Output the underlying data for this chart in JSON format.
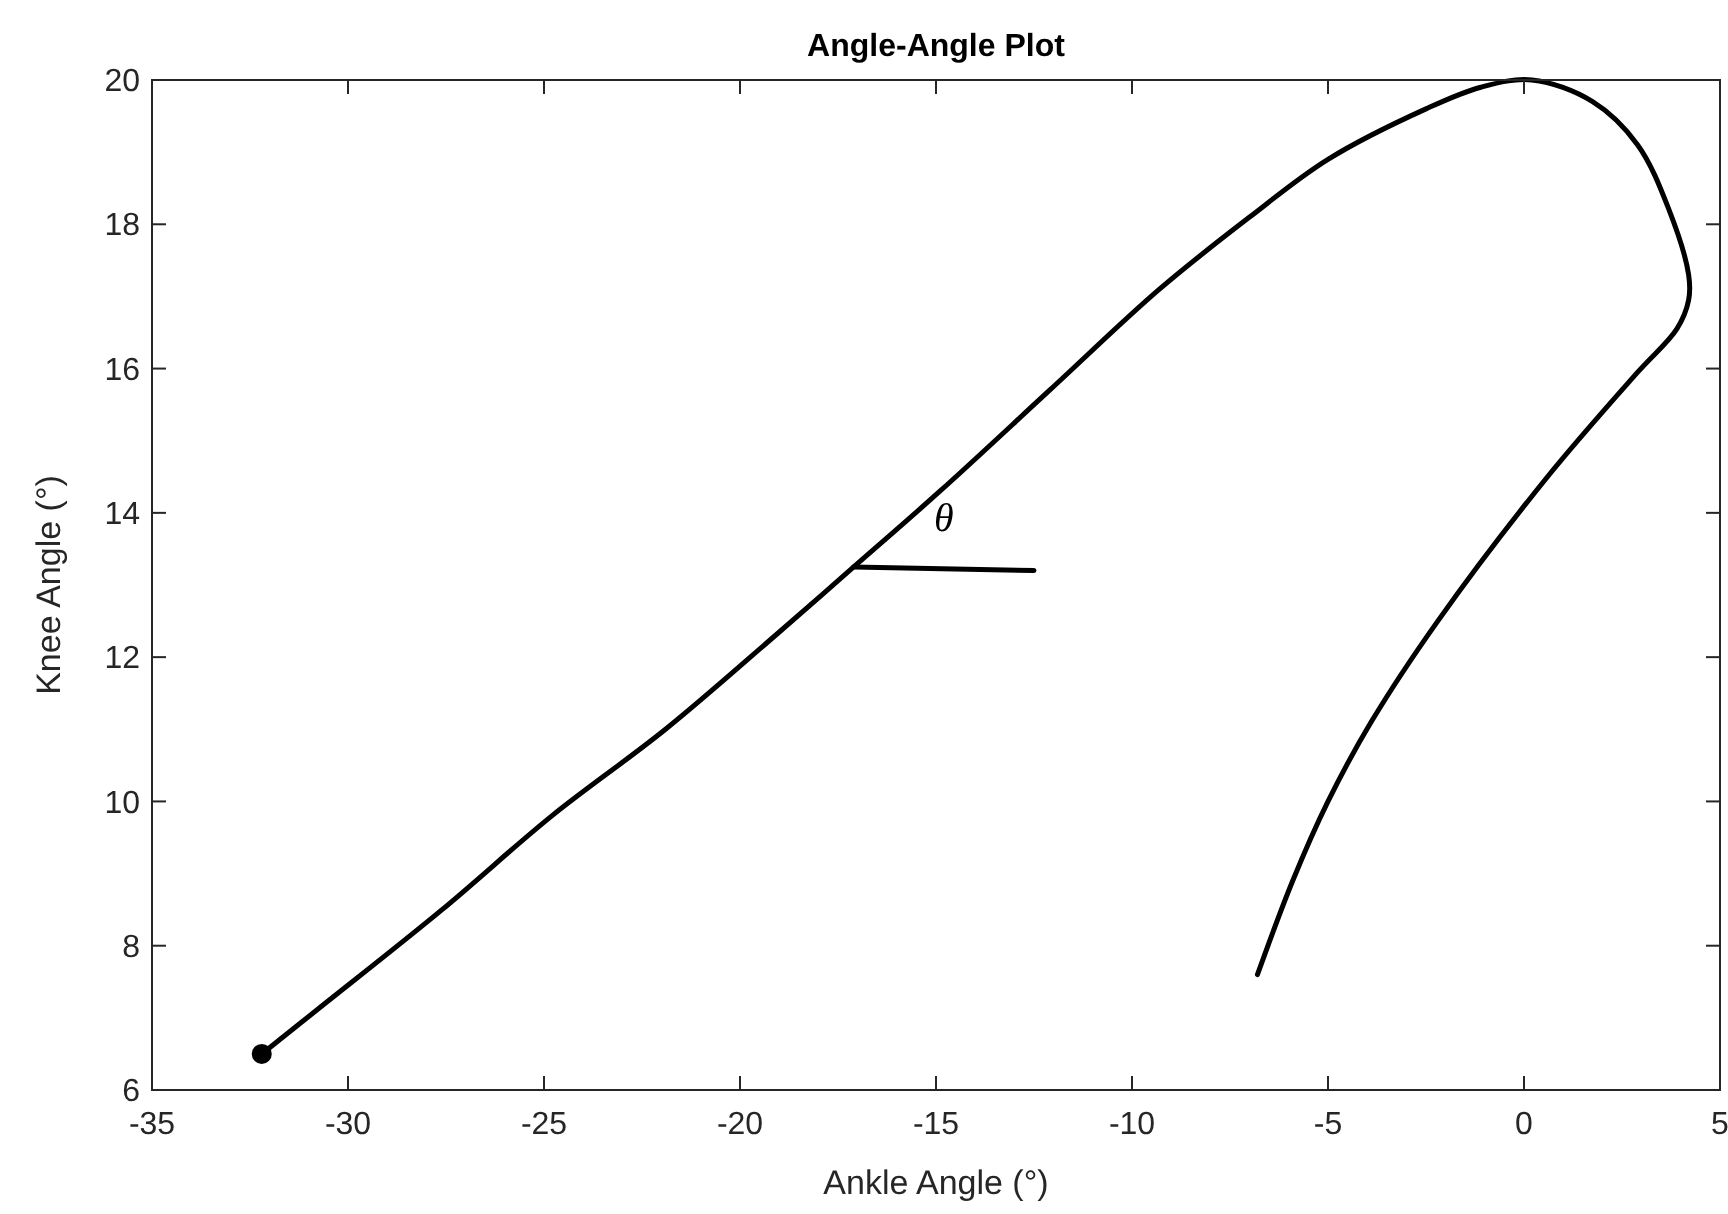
{
  "chart_data": {
    "type": "line",
    "title": "Angle-Angle Plot",
    "xlabel": "Ankle Angle (°)",
    "ylabel": "Knee Angle (°)",
    "xlim": [
      -35,
      5
    ],
    "ylim": [
      6,
      20
    ],
    "xticks": [
      -35,
      -30,
      -25,
      -20,
      -15,
      -10,
      -5,
      0,
      5
    ],
    "yticks": [
      6,
      8,
      10,
      12,
      14,
      16,
      18,
      20
    ],
    "grid": false,
    "line_style": "solid",
    "series": [
      {
        "color": "#000000",
        "marker": "none",
        "x": [
          -32.2,
          -30.7,
          -27.6,
          -24.8,
          -21.9,
          -19.1,
          -17.1,
          -14.9,
          -12.1,
          -9.3,
          -7.0,
          -5.0,
          -2.5,
          -1.1,
          0.2,
          1.75,
          2.9,
          3.7,
          4.2,
          4.2,
          3.9,
          2.9,
          0.6,
          -2.2,
          -3.9,
          -5.0,
          -5.9,
          -6.8
        ],
        "values": [
          6.5,
          7.15,
          8.5,
          9.8,
          11.0,
          12.3,
          13.25,
          14.3,
          15.7,
          17.1,
          18.1,
          18.9,
          19.6,
          19.9,
          20.0,
          19.7,
          19.1,
          18.2,
          17.3,
          16.95,
          16.55,
          15.95,
          14.5,
          12.5,
          11.1,
          10.0,
          8.9,
          7.6
        ]
      },
      {
        "color": "#000000",
        "marker": "none",
        "x": [
          -17.1,
          -12.5
        ],
        "values": [
          13.25,
          13.2
        ]
      },
      {
        "type": "scatter",
        "color": "#000000",
        "marker": "circle",
        "x": [
          -32.2
        ],
        "values": [
          6.5
        ]
      }
    ],
    "annotations": [
      "θ"
    ]
  }
}
